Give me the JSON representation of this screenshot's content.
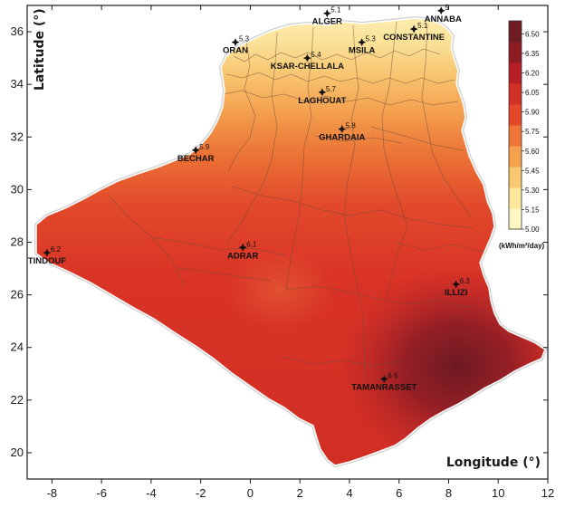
{
  "map": {
    "x_axis_title": "Longitude (°)",
    "y_axis_title": "Latitude (°)",
    "x_ticks": [
      -8,
      -6,
      -4,
      -2,
      0,
      2,
      4,
      6,
      8,
      10,
      12
    ],
    "y_ticks": [
      20,
      22,
      24,
      26,
      28,
      30,
      32,
      34,
      36
    ],
    "x_range": [
      -9,
      12
    ],
    "y_range": [
      19,
      37
    ]
  },
  "colorbar": {
    "unit_label": "(kWh/m²/day)",
    "min": 5.0,
    "max": 6.6,
    "ticks": [
      "5.00",
      "5.15",
      "5.30",
      "5.45",
      "5.60",
      "5.75",
      "5.90",
      "6.05",
      "6.20",
      "6.35",
      "6.50"
    ],
    "colors": [
      "#fdf7c4",
      "#fce79a",
      "#f9c870",
      "#f4a04d",
      "#ee7536",
      "#e4472a",
      "#d22f25",
      "#b71f26",
      "#8e1a24",
      "#701c25"
    ]
  },
  "chart_data": {
    "type": "heatmap",
    "title": "",
    "xlabel": "Longitude (°)",
    "ylabel": "Latitude (°)",
    "xlim": [
      -9,
      12
    ],
    "ylim": [
      19,
      37
    ],
    "value_unit": "(kWh/m²/day)",
    "color_range": [
      5.0,
      6.6
    ],
    "points": [
      {
        "name": "ALGER",
        "lon": 3.1,
        "lat": 36.7,
        "value": "5.1"
      },
      {
        "name": "ANNABA",
        "lon": 7.7,
        "lat": 36.8,
        "value": "5"
      },
      {
        "name": "CONSTANTINE",
        "lon": 6.6,
        "lat": 36.1,
        "value": "5.1"
      },
      {
        "name": "ORAN",
        "lon": -0.6,
        "lat": 35.6,
        "value": "5.3"
      },
      {
        "name": "MSILA",
        "lon": 4.5,
        "lat": 35.6,
        "value": "5.3"
      },
      {
        "name": "KSAR-CHELLALA",
        "lon": 2.3,
        "lat": 35.0,
        "value": "5.4"
      },
      {
        "name": "LAGHOUAT",
        "lon": 2.9,
        "lat": 33.7,
        "value": "5.7"
      },
      {
        "name": "GHARDAIA",
        "lon": 3.7,
        "lat": 32.3,
        "value": "5.8"
      },
      {
        "name": "BECHAR",
        "lon": -2.2,
        "lat": 31.5,
        "value": "5.9"
      },
      {
        "name": "TINDOUF",
        "lon": -8.2,
        "lat": 27.6,
        "value": "6.2"
      },
      {
        "name": "ADRAR",
        "lon": -0.3,
        "lat": 27.8,
        "value": "6.1"
      },
      {
        "name": "ILLIZI",
        "lon": 8.3,
        "lat": 26.4,
        "value": "6.3"
      },
      {
        "name": "TAMANRASSET",
        "lon": 5.4,
        "lat": 22.8,
        "value": "6.6"
      }
    ]
  }
}
